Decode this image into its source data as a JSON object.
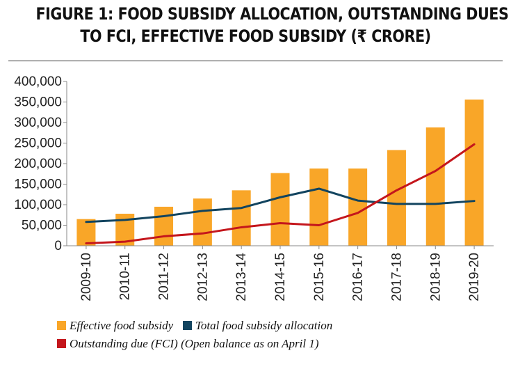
{
  "title_lines": [
    "FIGURE 1: FOOD SUBSIDY ALLOCATION, OUTSTANDING DUES",
    "TO FCI, EFFECTIVE FOOD SUBSIDY (₹ CRORE)"
  ],
  "colors": {
    "bar": "#F9A628",
    "allocation_line": "#12445F",
    "outstanding_line": "#C4161C",
    "axis": "#888888",
    "text": "#222222"
  },
  "chart_data": {
    "type": "bar",
    "categories": [
      "2009-10",
      "2010-11",
      "2011-12",
      "2012-13",
      "2013-14",
      "2014-15",
      "2015-16",
      "2016-17",
      "2017-18",
      "2018-19",
      "2019-20"
    ],
    "ylim": [
      0,
      400000
    ],
    "yticks": [
      "0",
      "50,000",
      "100,000",
      "150,000",
      "200,000",
      "250,000",
      "300,000",
      "350,000",
      "400,000"
    ],
    "ytick_values": [
      0,
      50000,
      100000,
      150000,
      200000,
      250000,
      300000,
      350000,
      400000
    ],
    "series": [
      {
        "name": "Effective food subsidy",
        "type": "bar",
        "values": [
          65000,
          78000,
          95000,
          115000,
          135000,
          177000,
          188000,
          188000,
          233000,
          288000,
          356000
        ]
      },
      {
        "name": "Total food subsidy allocation",
        "type": "line",
        "values": [
          58000,
          63000,
          72000,
          85000,
          92000,
          118000,
          139000,
          110000,
          102000,
          102000,
          109000
        ]
      },
      {
        "name": "Outstanding due (FCI) (Open balance as on April 1)",
        "type": "line",
        "values": [
          6000,
          10000,
          23000,
          30000,
          45000,
          55000,
          50000,
          80000,
          135000,
          182000,
          247000
        ]
      }
    ]
  }
}
